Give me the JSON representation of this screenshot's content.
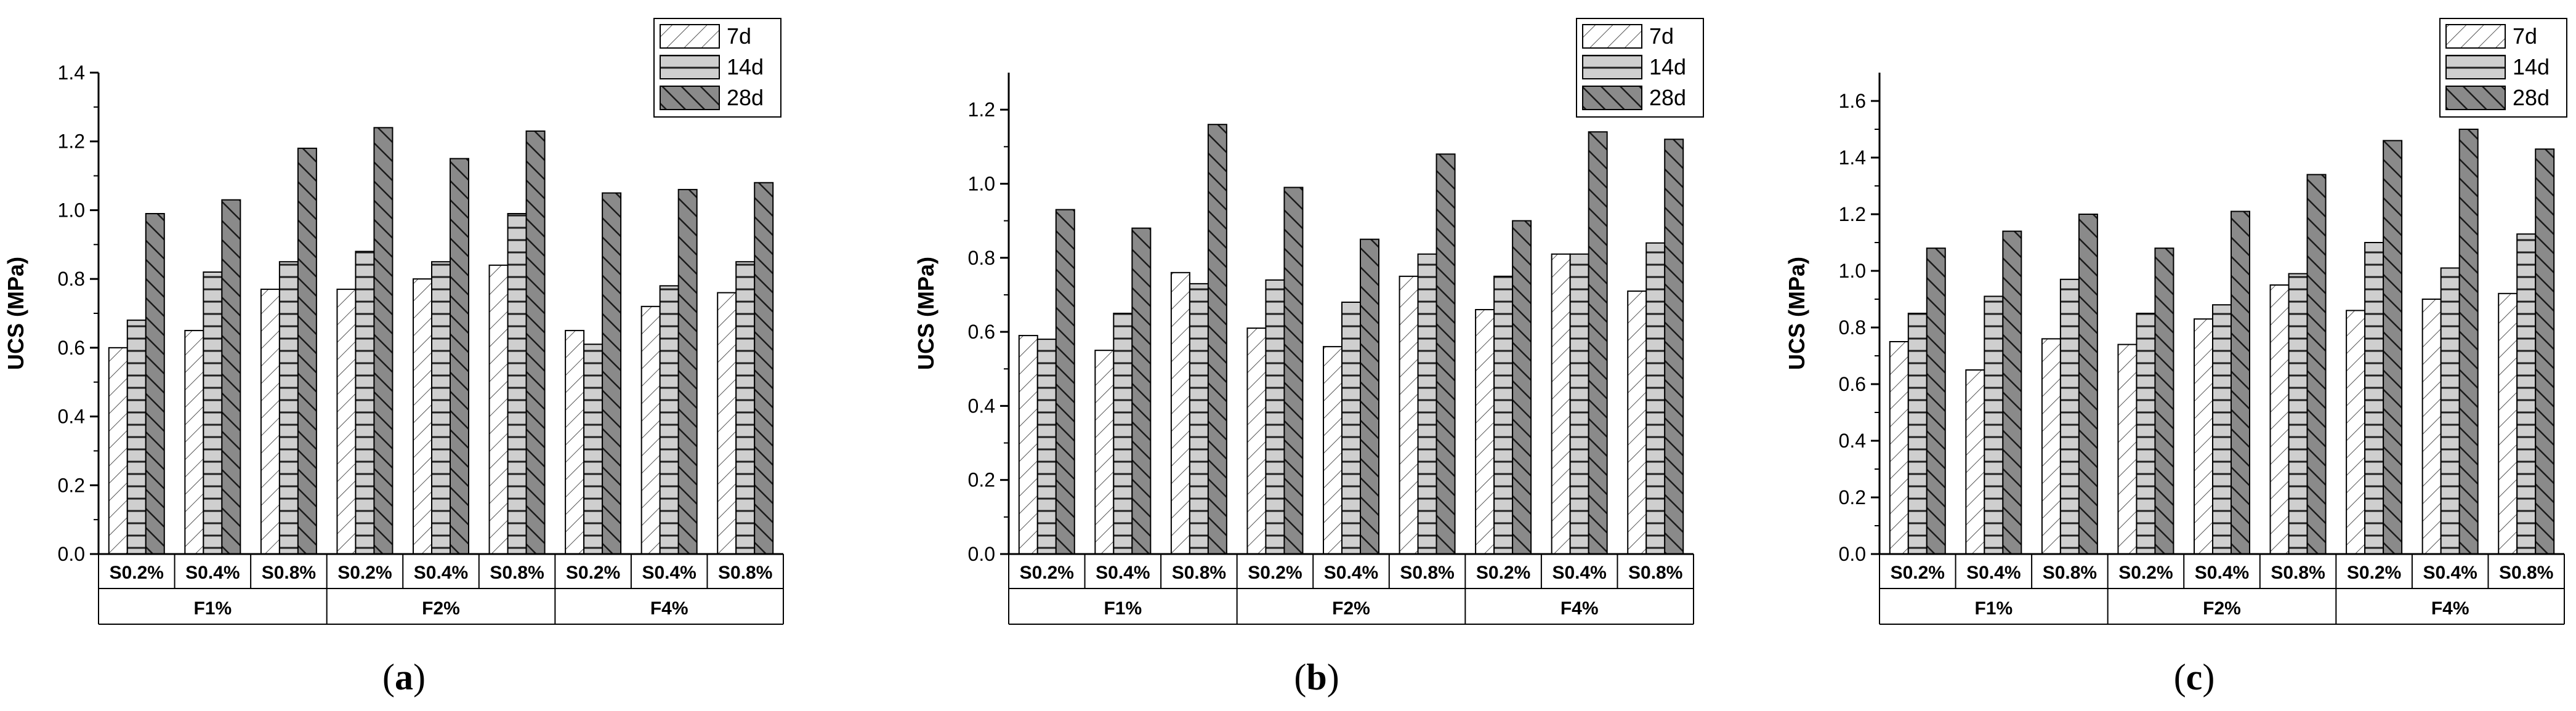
{
  "colors": {
    "7d": "#ffffff",
    "14d": "#c4c4c4",
    "28d": "#7a7a7a",
    "axis": "#000000"
  },
  "panels": [
    {
      "letter": "a"
    },
    {
      "letter": "b"
    },
    {
      "letter": "c"
    }
  ],
  "chart_data": [
    {
      "type": "bar",
      "ylabel": "UCS (MPa)",
      "ylim": [
        0,
        1.4
      ],
      "yticks": [
        "0.0",
        "0.2",
        "0.4",
        "0.6",
        "0.8",
        "1.0",
        "1.2",
        "1.4"
      ],
      "categories": [
        "S0.2%",
        "S0.4%",
        "S0.8%",
        "S0.2%",
        "S0.4%",
        "S0.8%",
        "S0.2%",
        "S0.4%",
        "S0.8%"
      ],
      "groups": [
        "F1%",
        "F2%",
        "F4%"
      ],
      "legend": "top-right",
      "series": [
        {
          "name": "7d",
          "values": [
            0.6,
            0.65,
            0.77,
            0.77,
            0.8,
            0.84,
            0.65,
            0.72,
            0.76
          ]
        },
        {
          "name": "14d",
          "values": [
            0.68,
            0.82,
            0.85,
            0.88,
            0.85,
            0.99,
            0.61,
            0.78,
            0.85
          ]
        },
        {
          "name": "28d",
          "values": [
            0.99,
            1.03,
            1.18,
            1.24,
            1.15,
            1.23,
            1.05,
            1.06,
            1.08
          ]
        }
      ]
    },
    {
      "type": "bar",
      "ylabel": "UCS (MPa)",
      "ylim": [
        0,
        1.3
      ],
      "yticks": [
        "0.0",
        "0.2",
        "0.4",
        "0.6",
        "0.8",
        "1.0",
        "1.2"
      ],
      "categories": [
        "S0.2%",
        "S0.4%",
        "S0.8%",
        "S0.2%",
        "S0.4%",
        "S0.8%",
        "S0.2%",
        "S0.4%",
        "S0.8%"
      ],
      "groups": [
        "F1%",
        "F2%",
        "F4%"
      ],
      "legend": "top-right",
      "series": [
        {
          "name": "7d",
          "values": [
            0.59,
            0.55,
            0.76,
            0.61,
            0.56,
            0.75,
            0.66,
            0.81,
            0.71
          ]
        },
        {
          "name": "14d",
          "values": [
            0.58,
            0.65,
            0.73,
            0.74,
            0.68,
            0.81,
            0.75,
            0.81,
            0.84
          ]
        },
        {
          "name": "28d",
          "values": [
            0.93,
            0.88,
            1.16,
            0.99,
            0.85,
            1.08,
            0.9,
            1.14,
            1.12
          ]
        }
      ]
    },
    {
      "type": "bar",
      "ylabel": "UCS (MPa)",
      "ylim": [
        0,
        1.7
      ],
      "yticks": [
        "0.0",
        "0.2",
        "0.4",
        "0.6",
        "0.8",
        "1.0",
        "1.2",
        "1.4",
        "1.6"
      ],
      "categories": [
        "S0.2%",
        "S0.4%",
        "S0.8%",
        "S0.2%",
        "S0.4%",
        "S0.8%",
        "S0.2%",
        "S0.4%",
        "S0.8%"
      ],
      "groups": [
        "F1%",
        "F2%",
        "F4%"
      ],
      "legend": "top-right",
      "series": [
        {
          "name": "7d",
          "values": [
            0.75,
            0.65,
            0.76,
            0.74,
            0.83,
            0.95,
            0.86,
            0.9,
            0.92
          ]
        },
        {
          "name": "14d",
          "values": [
            0.85,
            0.91,
            0.97,
            0.85,
            0.88,
            0.99,
            1.1,
            1.01,
            1.13
          ]
        },
        {
          "name": "28d",
          "values": [
            1.08,
            1.14,
            1.2,
            1.08,
            1.21,
            1.34,
            1.46,
            1.5,
            1.43
          ]
        }
      ]
    }
  ]
}
